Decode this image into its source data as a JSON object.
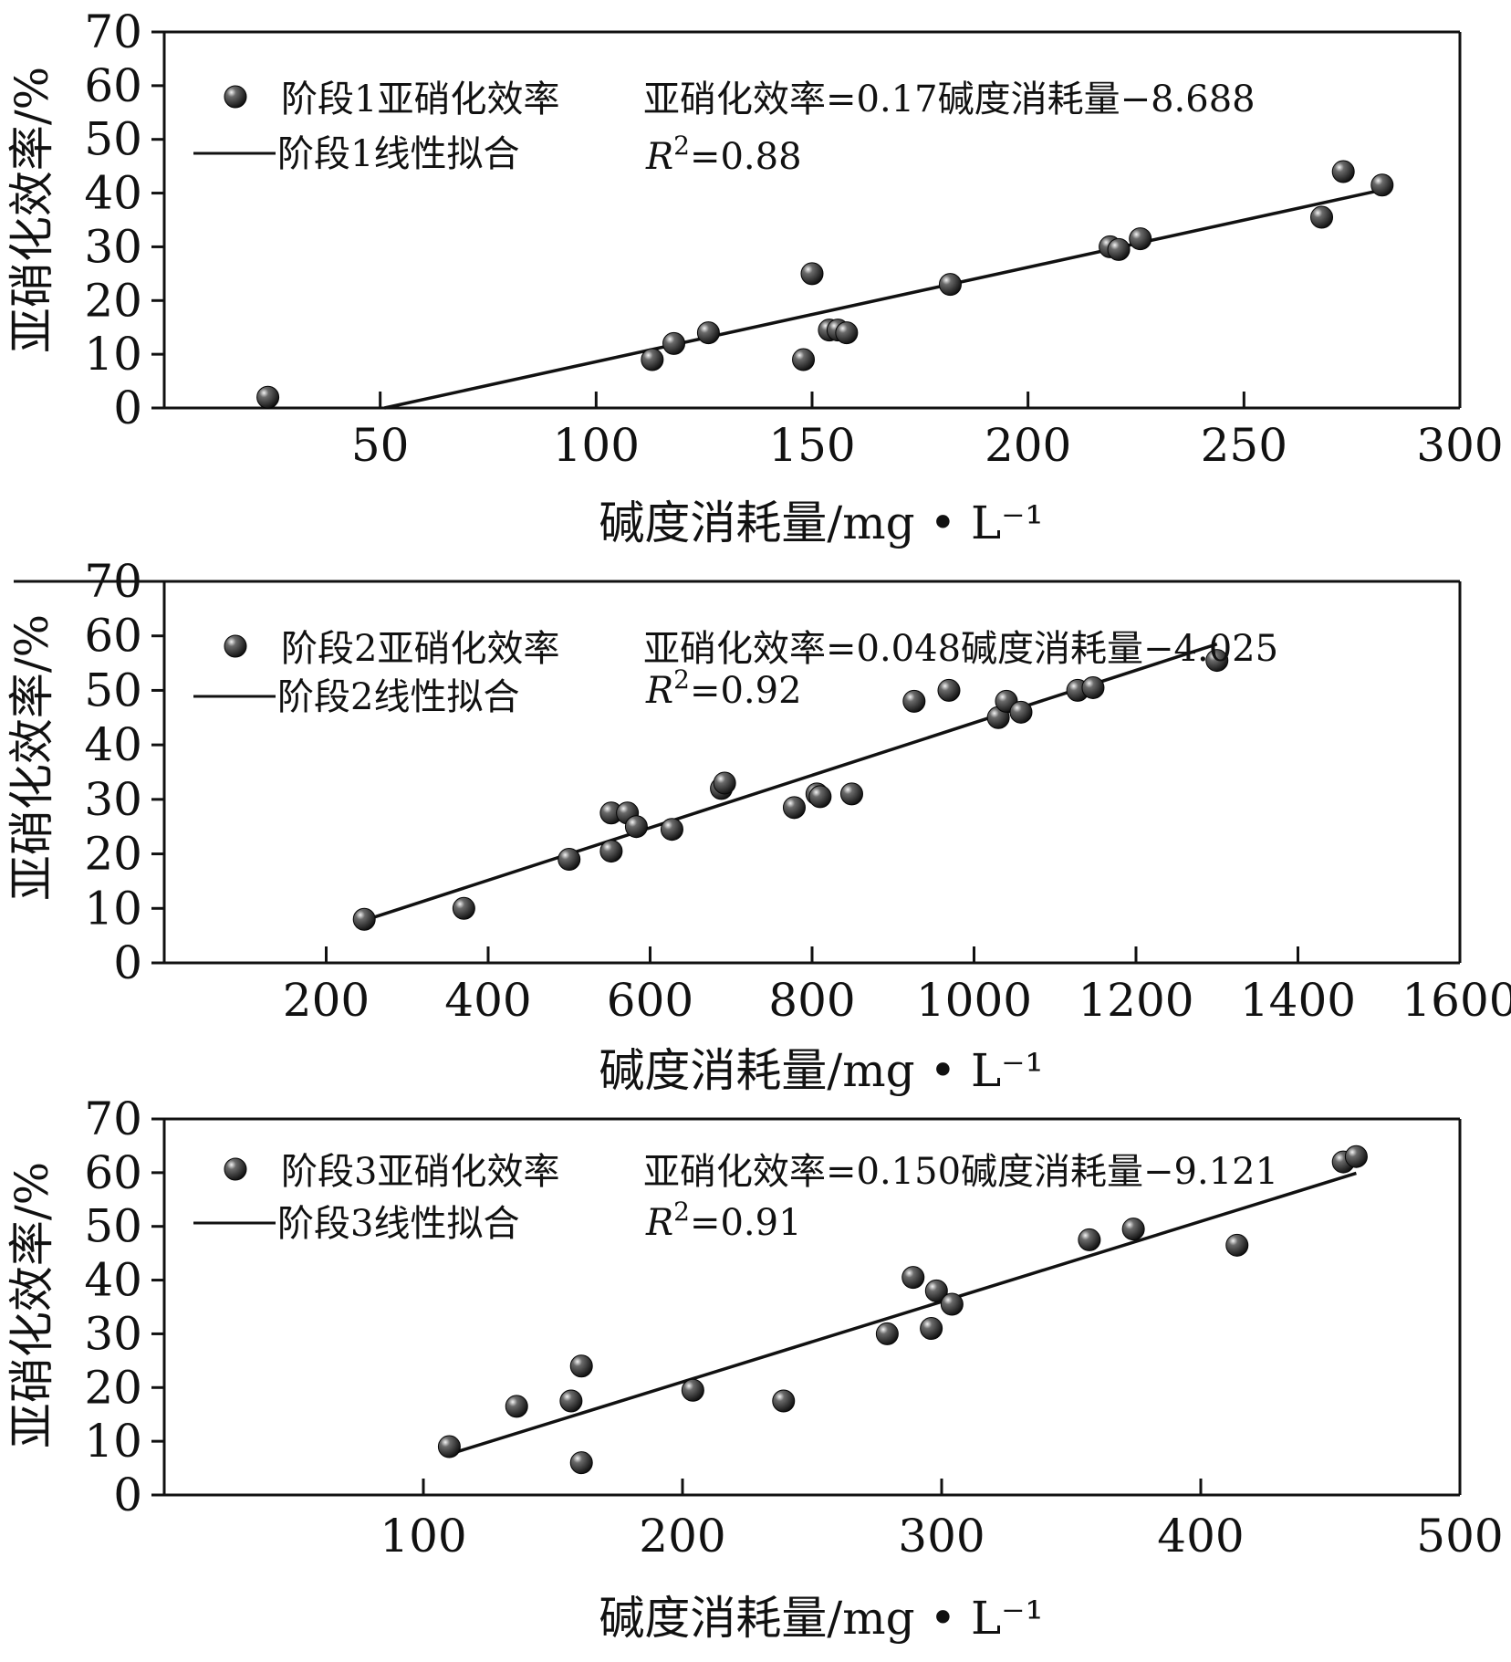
{
  "figure": {
    "colors": {
      "ink": "#111111",
      "marker": "#1a1a1a",
      "marker_highlight": "#f5f5f5",
      "background": "#ffffff"
    },
    "icons": {
      "marker": "sphere-marker-icon",
      "fit_line": "line-sample-icon"
    }
  },
  "chart_data": [
    {
      "type": "scatter",
      "panel": "stage-1",
      "xlabel": "碱度消耗量/mg • L⁻¹",
      "ylabel": "亚硝化效率/%",
      "xlim": [
        0,
        300
      ],
      "ylim": [
        0,
        70
      ],
      "xticks": [
        50,
        100,
        150,
        200,
        250,
        300
      ],
      "xtick_labels": [
        "50",
        "100",
        "150",
        "200",
        "250",
        "300"
      ],
      "yticks": [
        0,
        10,
        20,
        30,
        40,
        50,
        60,
        70
      ],
      "ytick_labels": [
        "0",
        "10",
        "20",
        "30",
        "40",
        "50",
        "60",
        "70"
      ],
      "legend": {
        "scatter_label": "阶段1亚硝化效率",
        "line_label": "阶段1线性拟合",
        "placement": "top-left"
      },
      "equation": "亚硝化效率=0.17碱度消耗量−8.688",
      "r2_label": "R",
      "r2_exponent": "2",
      "r2_value": "=0.88",
      "points": [
        [
          24,
          2
        ],
        [
          113,
          9
        ],
        [
          118,
          12
        ],
        [
          126,
          14
        ],
        [
          148,
          9
        ],
        [
          150,
          25
        ],
        [
          154,
          14.5
        ],
        [
          156,
          14.5
        ],
        [
          158,
          14
        ],
        [
          182,
          23
        ],
        [
          219,
          30
        ],
        [
          221,
          29.5
        ],
        [
          226,
          31.5
        ],
        [
          268,
          35.5
        ],
        [
          273,
          44
        ],
        [
          282,
          41.5
        ]
      ],
      "fit": {
        "x": [
          51,
          282
        ],
        "y": [
          0,
          40.6
        ]
      }
    },
    {
      "type": "scatter",
      "panel": "stage-2",
      "xlabel": "碱度消耗量/mg • L⁻¹",
      "ylabel": "亚硝化效率/%",
      "xlim": [
        0,
        1600
      ],
      "ylim": [
        0,
        70
      ],
      "xticks": [
        200,
        400,
        600,
        800,
        1000,
        1200,
        1400,
        1600
      ],
      "xtick_labels": [
        "200",
        "400",
        "600",
        "800",
        "1000",
        "1200",
        "1400",
        "1600"
      ],
      "yticks": [
        0,
        10,
        20,
        30,
        40,
        50,
        60,
        70
      ],
      "ytick_labels": [
        "0",
        "10",
        "20",
        "30",
        "40",
        "50",
        "60",
        "70"
      ],
      "legend": {
        "scatter_label": "阶段2亚硝化效率",
        "line_label": "阶段2线性拟合",
        "placement": "top-left"
      },
      "equation": "亚硝化效率=0.048碱度消耗量−4.025",
      "r2_label": "R",
      "r2_exponent": "2",
      "r2_value": "=0.92",
      "points": [
        [
          247,
          8
        ],
        [
          370,
          10
        ],
        [
          500,
          19
        ],
        [
          552,
          27.5
        ],
        [
          552,
          20.5
        ],
        [
          572,
          27.5
        ],
        [
          583,
          25
        ],
        [
          627,
          24.5
        ],
        [
          688,
          32
        ],
        [
          692,
          33
        ],
        [
          778,
          28.5
        ],
        [
          806,
          31
        ],
        [
          810,
          30.5
        ],
        [
          849,
          31
        ],
        [
          926,
          48
        ],
        [
          969,
          50
        ],
        [
          1030,
          45
        ],
        [
          1040,
          48
        ],
        [
          1058,
          46
        ],
        [
          1128,
          50
        ],
        [
          1147,
          50.5
        ],
        [
          1300,
          55.5
        ]
      ],
      "fit": {
        "x": [
          247,
          1300
        ],
        "y": [
          7.8,
          58.5
        ]
      }
    },
    {
      "type": "scatter",
      "panel": "stage-3",
      "xlabel": "碱度消耗量/mg • L⁻¹",
      "ylabel": "亚硝化效率/%",
      "xlim": [
        0,
        500
      ],
      "ylim": [
        0,
        70
      ],
      "xticks": [
        100,
        200,
        300,
        400,
        500
      ],
      "xtick_labels": [
        "100",
        "200",
        "300",
        "400",
        "500"
      ],
      "yticks": [
        0,
        10,
        20,
        30,
        40,
        50,
        60,
        70
      ],
      "ytick_labels": [
        "0",
        "10",
        "20",
        "30",
        "40",
        "50",
        "60",
        "70"
      ],
      "legend": {
        "scatter_label": "阶段3亚硝化效率",
        "line_label": "阶段3线性拟合",
        "placement": "top-left"
      },
      "equation": "亚硝化效率=0.150碱度消耗量−9.121",
      "r2_label": "R",
      "r2_exponent": "2",
      "r2_value": "=0.91",
      "points": [
        [
          110,
          9
        ],
        [
          136,
          16.5
        ],
        [
          157,
          17.5
        ],
        [
          161,
          24
        ],
        [
          161,
          6
        ],
        [
          204,
          19.5
        ],
        [
          239,
          17.5
        ],
        [
          279,
          30
        ],
        [
          289,
          40.5
        ],
        [
          296,
          31
        ],
        [
          298,
          38
        ],
        [
          304,
          35.5
        ],
        [
          357,
          47.5
        ],
        [
          374,
          49.5
        ],
        [
          414,
          46.5
        ],
        [
          455,
          62
        ],
        [
          460,
          63
        ]
      ],
      "fit": {
        "x": [
          110,
          460
        ],
        "y": [
          7.6,
          59.9
        ]
      }
    }
  ]
}
